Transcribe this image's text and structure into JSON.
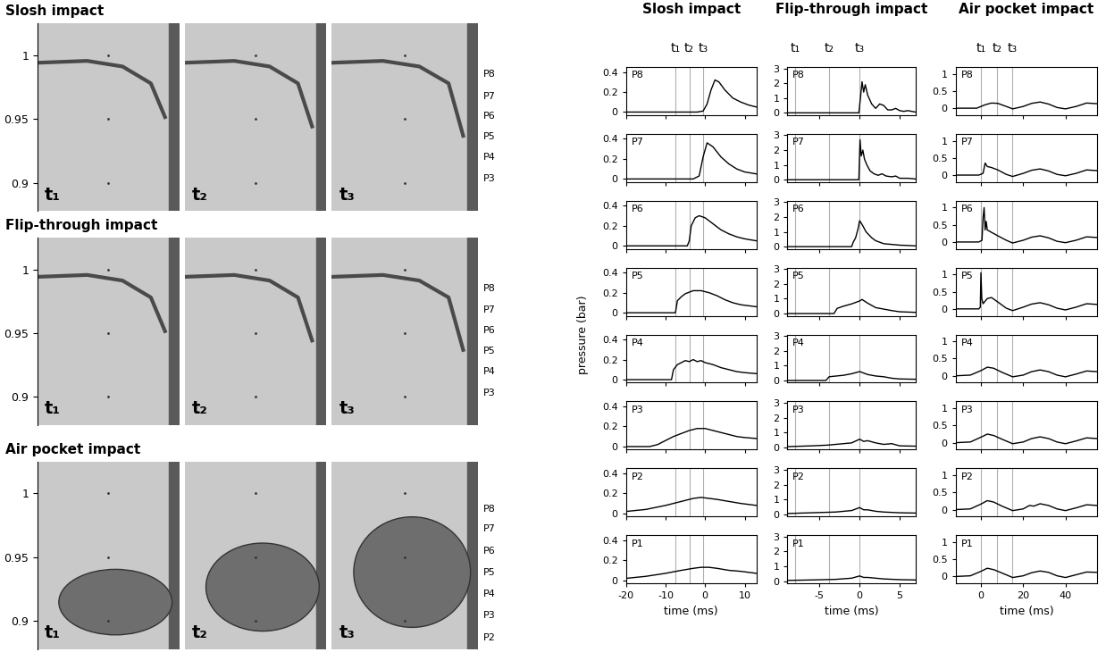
{
  "photos": {
    "ylim": [
      0.878,
      1.025
    ],
    "yticks": [
      0.9,
      0.95,
      1
    ],
    "frame_labels": [
      "t₁",
      "t₂",
      "t₃"
    ],
    "rows": [
      {
        "title": "Slosh impact",
        "sensors": [
          "P8",
          "P7",
          "P6",
          "P5",
          "P4",
          "P3"
        ],
        "sensor_y": [
          0.985,
          0.968,
          0.952,
          0.936,
          0.92,
          0.903
        ]
      },
      {
        "title": "Flip-through impact",
        "sensors": [
          "P8",
          "P7",
          "P6",
          "P5",
          "P4",
          "P3"
        ],
        "sensor_y": [
          0.985,
          0.968,
          0.952,
          0.936,
          0.92,
          0.903
        ]
      },
      {
        "title": "Air pocket impact",
        "sensors": [
          "P8",
          "P7",
          "P6",
          "P5",
          "P4",
          "P3",
          "P2"
        ],
        "sensor_y": [
          0.988,
          0.972,
          0.955,
          0.938,
          0.921,
          0.904,
          0.887
        ]
      }
    ]
  },
  "chart_data": [
    {
      "type": "line",
      "title": "Slosh impact",
      "x_label": "time (ms)",
      "y_label": "pressure (bar)",
      "xlim": [
        -20,
        13
      ],
      "xticks": [
        -20,
        -10,
        0,
        10
      ],
      "ylim": [
        -0.03,
        0.45
      ],
      "yticks": [
        0,
        0.2,
        0.4
      ],
      "color": "#000000",
      "markers": {
        "labels": [
          "t₁",
          "t₂",
          "t₃"
        ],
        "x": [
          -7.5,
          -4,
          -0.5
        ]
      },
      "series": [
        {
          "name": "P8",
          "x": [
            -20,
            -2,
            -0.5,
            0.5,
            1.5,
            2.5,
            3.5,
            5,
            7,
            9,
            11,
            13
          ],
          "values": [
            0,
            0,
            0.01,
            0.08,
            0.22,
            0.32,
            0.3,
            0.22,
            0.14,
            0.1,
            0.07,
            0.05
          ]
        },
        {
          "name": "P7",
          "x": [
            -20,
            -3,
            -1.5,
            -0.5,
            0.5,
            2,
            4,
            6,
            8,
            10,
            13
          ],
          "values": [
            0,
            0,
            0.03,
            0.22,
            0.36,
            0.32,
            0.22,
            0.15,
            0.1,
            0.07,
            0.05
          ]
        },
        {
          "name": "P6",
          "x": [
            -20,
            -4.5,
            -4,
            -3.5,
            -2.5,
            -1.5,
            0,
            2,
            4,
            6,
            8,
            10,
            13
          ],
          "values": [
            0,
            0,
            0.05,
            0.2,
            0.28,
            0.3,
            0.28,
            0.22,
            0.16,
            0.12,
            0.09,
            0.07,
            0.05
          ]
        },
        {
          "name": "P5",
          "x": [
            -20,
            -7.5,
            -7,
            -6,
            -5,
            -3,
            -1,
            1,
            3,
            5,
            7,
            9,
            11,
            13
          ],
          "values": [
            0,
            0,
            0.12,
            0.16,
            0.19,
            0.22,
            0.22,
            0.2,
            0.17,
            0.13,
            0.1,
            0.08,
            0.07,
            0.06
          ]
        },
        {
          "name": "P4",
          "x": [
            -20,
            -8.5,
            -8,
            -7,
            -6,
            -5,
            -4,
            -3,
            -2,
            -1,
            0,
            2,
            4,
            6,
            8,
            10,
            13
          ],
          "values": [
            0,
            0,
            0.1,
            0.15,
            0.17,
            0.19,
            0.18,
            0.2,
            0.18,
            0.19,
            0.17,
            0.15,
            0.12,
            0.1,
            0.08,
            0.07,
            0.06
          ]
        },
        {
          "name": "P3",
          "x": [
            -20,
            -14,
            -12,
            -10,
            -8,
            -6,
            -4,
            -2,
            -1,
            0,
            2,
            4,
            6,
            8,
            10,
            13
          ],
          "values": [
            0,
            0,
            0.02,
            0.06,
            0.1,
            0.13,
            0.16,
            0.18,
            0.18,
            0.18,
            0.16,
            0.14,
            0.12,
            0.1,
            0.09,
            0.08
          ]
        },
        {
          "name": "P2",
          "x": [
            -20,
            -15,
            -10,
            -6,
            -3,
            -1,
            1,
            3,
            6,
            9,
            13
          ],
          "values": [
            0.02,
            0.04,
            0.08,
            0.12,
            0.15,
            0.16,
            0.15,
            0.14,
            0.12,
            0.1,
            0.08
          ]
        },
        {
          "name": "P1",
          "x": [
            -20,
            -15,
            -10,
            -6,
            -3,
            -1,
            1,
            3,
            6,
            9,
            13
          ],
          "values": [
            0.02,
            0.04,
            0.07,
            0.1,
            0.12,
            0.13,
            0.13,
            0.12,
            0.1,
            0.09,
            0.07
          ]
        }
      ]
    },
    {
      "type": "line",
      "title": "Flip-through impact",
      "x_label": "time (ms)",
      "xlim": [
        -9,
        7
      ],
      "xticks": [
        -5,
        0,
        5
      ],
      "ylim": [
        -0.15,
        3.1
      ],
      "yticks": [
        0,
        1,
        2,
        3
      ],
      "color": "#000000",
      "markers": {
        "labels": [
          "t₁",
          "t₂",
          "t₃"
        ],
        "x": [
          -8,
          -3.8,
          0
        ]
      },
      "series": [
        {
          "name": "P8",
          "x": [
            -9,
            -0.1,
            0.1,
            0.3,
            0.5,
            0.7,
            1,
            1.5,
            2,
            2.5,
            3,
            3.5,
            4,
            4.5,
            5,
            5.5,
            6,
            7
          ],
          "values": [
            0,
            0,
            1.0,
            2.1,
            1.4,
            1.9,
            1.2,
            0.6,
            0.3,
            0.6,
            0.5,
            0.2,
            0.2,
            0.3,
            0.15,
            0.1,
            0.15,
            0.05
          ]
        },
        {
          "name": "P7",
          "x": [
            -9,
            -0.1,
            0.05,
            0.2,
            0.4,
            0.6,
            0.9,
            1.3,
            1.8,
            2.3,
            2.8,
            3.3,
            4,
            4.5,
            5,
            6,
            7
          ],
          "values": [
            0,
            0,
            2.7,
            1.6,
            2.0,
            1.4,
            1.0,
            0.6,
            0.4,
            0.3,
            0.4,
            0.25,
            0.2,
            0.25,
            0.1,
            0.1,
            0.05
          ]
        },
        {
          "name": "P6",
          "x": [
            -9,
            -1,
            -0.8,
            -0.5,
            -0.2,
            0,
            0.3,
            0.8,
            1.5,
            2,
            3,
            4,
            5,
            6,
            7
          ],
          "values": [
            0,
            0,
            0.3,
            0.6,
            1.2,
            1.75,
            1.5,
            1.0,
            0.6,
            0.4,
            0.2,
            0.15,
            0.1,
            0.08,
            0.05
          ]
        },
        {
          "name": "P5",
          "x": [
            -9,
            -3.2,
            -2.8,
            -2,
            -1,
            0,
            0.3,
            1,
            2,
            3,
            4,
            5,
            7
          ],
          "values": [
            0,
            0,
            0.35,
            0.5,
            0.65,
            0.85,
            0.95,
            0.7,
            0.4,
            0.3,
            0.2,
            0.12,
            0.08
          ]
        },
        {
          "name": "P4",
          "x": [
            -9,
            -4.2,
            -3.8,
            -2,
            -1,
            0,
            0.5,
            1,
            2,
            3,
            4,
            5,
            7
          ],
          "values": [
            0,
            0,
            0.25,
            0.35,
            0.45,
            0.6,
            0.5,
            0.4,
            0.3,
            0.25,
            0.15,
            0.1,
            0.08
          ]
        },
        {
          "name": "P3",
          "x": [
            -9,
            -6,
            -4,
            -2,
            -1,
            0,
            0.5,
            1,
            2,
            3,
            4,
            5,
            7
          ],
          "values": [
            0.05,
            0.1,
            0.15,
            0.25,
            0.3,
            0.55,
            0.4,
            0.45,
            0.3,
            0.2,
            0.25,
            0.1,
            0.08
          ]
        },
        {
          "name": "P2",
          "x": [
            -9,
            -6,
            -3,
            -1,
            0,
            0.5,
            1,
            2,
            3,
            5,
            7
          ],
          "values": [
            0.05,
            0.1,
            0.15,
            0.25,
            0.45,
            0.3,
            0.3,
            0.2,
            0.15,
            0.1,
            0.08
          ]
        },
        {
          "name": "P1",
          "x": [
            -9,
            -6,
            -3,
            -1,
            0,
            0.5,
            1,
            2,
            3,
            5,
            7
          ],
          "values": [
            0.05,
            0.08,
            0.12,
            0.2,
            0.35,
            0.25,
            0.25,
            0.2,
            0.15,
            0.1,
            0.08
          ]
        }
      ]
    },
    {
      "type": "line",
      "title": "Air pocket impact",
      "x_label": "time (ms)",
      "xlim": [
        -12,
        55
      ],
      "xticks": [
        0,
        20,
        40
      ],
      "ylim": [
        -0.2,
        1.2
      ],
      "yticks": [
        0,
        0.5,
        1
      ],
      "color": "#000000",
      "markers": {
        "labels": [
          "t₁",
          "t₂",
          "t₃"
        ],
        "x": [
          0,
          7.5,
          15
        ]
      },
      "series": [
        {
          "name": "P8",
          "x": [
            -12,
            -2,
            0,
            2,
            5,
            8,
            12,
            15,
            20,
            24,
            28,
            32,
            36,
            40,
            45,
            50,
            55
          ],
          "values": [
            0,
            0,
            0.05,
            0.1,
            0.15,
            0.14,
            0.05,
            -0.02,
            0.05,
            0.14,
            0.18,
            0.12,
            0.02,
            -0.02,
            0.05,
            0.15,
            0.13
          ]
        },
        {
          "name": "P7",
          "x": [
            -12,
            -1,
            1,
            2,
            3,
            5,
            8,
            12,
            15,
            20,
            24,
            28,
            32,
            36,
            40,
            45,
            50,
            55
          ],
          "values": [
            0,
            0,
            0.05,
            0.35,
            0.25,
            0.22,
            0.15,
            0.02,
            -0.04,
            0.05,
            0.14,
            0.18,
            0.12,
            0.02,
            -0.02,
            0.05,
            0.15,
            0.13
          ]
        },
        {
          "name": "P6",
          "x": [
            -12,
            -1,
            0.5,
            1,
            1.5,
            2,
            2.5,
            3,
            5,
            8,
            12,
            15,
            20,
            24,
            28,
            32,
            36,
            40,
            45,
            50,
            55
          ],
          "values": [
            0,
            0,
            0.05,
            0.7,
            1.0,
            0.35,
            0.6,
            0.35,
            0.28,
            0.18,
            0.05,
            -0.03,
            0.05,
            0.14,
            0.18,
            0.12,
            0.02,
            -0.02,
            0.05,
            0.15,
            0.13
          ]
        },
        {
          "name": "P5",
          "x": [
            -12,
            -1,
            -0.3,
            0,
            0.4,
            1,
            3,
            5,
            8,
            12,
            15,
            20,
            24,
            28,
            32,
            36,
            40,
            45,
            50,
            55
          ],
          "values": [
            0,
            0,
            0.05,
            1.05,
            0.3,
            0.15,
            0.3,
            0.33,
            0.2,
            0.02,
            -0.05,
            0.05,
            0.14,
            0.18,
            0.12,
            0.02,
            -0.03,
            0.05,
            0.15,
            0.13
          ]
        },
        {
          "name": "P4",
          "x": [
            -12,
            -5,
            0,
            3,
            6,
            10,
            15,
            20,
            24,
            28,
            32,
            36,
            40,
            45,
            50,
            55
          ],
          "values": [
            0,
            0.02,
            0.15,
            0.25,
            0.22,
            0.1,
            -0.03,
            0.02,
            0.12,
            0.17,
            0.12,
            0.02,
            -0.03,
            0.05,
            0.14,
            0.12
          ]
        },
        {
          "name": "P3",
          "x": [
            -12,
            -5,
            0,
            3,
            6,
            10,
            15,
            20,
            24,
            28,
            32,
            36,
            40,
            45,
            50,
            55
          ],
          "values": [
            0,
            0.02,
            0.16,
            0.25,
            0.21,
            0.1,
            -0.03,
            0.02,
            0.12,
            0.17,
            0.12,
            0.02,
            -0.03,
            0.05,
            0.14,
            0.12
          ]
        },
        {
          "name": "P2",
          "x": [
            -12,
            -5,
            0,
            3,
            6,
            10,
            15,
            20,
            23,
            25,
            28,
            32,
            36,
            40,
            45,
            50,
            55
          ],
          "values": [
            0,
            0.02,
            0.16,
            0.26,
            0.22,
            0.1,
            -0.03,
            0.02,
            0.12,
            0.1,
            0.17,
            0.12,
            0.02,
            -0.03,
            0.05,
            0.14,
            0.12
          ]
        },
        {
          "name": "P1",
          "x": [
            -12,
            -5,
            0,
            3,
            6,
            10,
            15,
            20,
            24,
            28,
            32,
            36,
            40,
            45,
            50,
            55
          ],
          "values": [
            0,
            0.02,
            0.15,
            0.24,
            0.2,
            0.1,
            -0.03,
            0.02,
            0.11,
            0.16,
            0.12,
            0.02,
            -0.03,
            0.05,
            0.13,
            0.12
          ]
        }
      ]
    }
  ]
}
